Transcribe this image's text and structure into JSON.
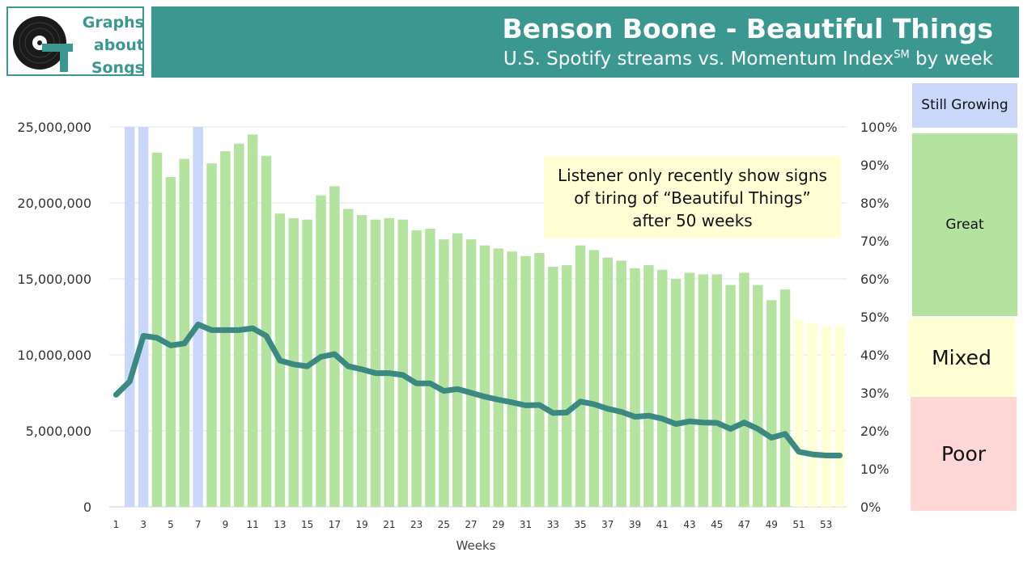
{
  "logo": {
    "line1": "Graphs",
    "line2": "about",
    "line3": "Songs",
    "icon": "vinyl-record-icon"
  },
  "header": {
    "title": "Benson Boone - Beautiful Things",
    "subtitle_main": "U.S. Spotify streams vs. Momentum Index",
    "subtitle_sup": "SM",
    "subtitle_end": " by week"
  },
  "annotation": "Listener only recently show signs of tiring of “Beautiful Things” after 50 weeks",
  "zones": {
    "growing": "Still Growing",
    "great": "Great",
    "mixed": "Mixed",
    "poor": "Poor"
  },
  "colors": {
    "teal": "#3a9890",
    "still_growing": "#c9d8fa",
    "great": "#b4e3a0",
    "mixed": "#ffffd6",
    "poor": "#ffd7d7",
    "line": "#3a8a82"
  },
  "chart_data": {
    "type": "bar",
    "xlabel": "Weeks",
    "x": [
      1,
      2,
      3,
      4,
      5,
      6,
      7,
      8,
      9,
      10,
      11,
      12,
      13,
      14,
      15,
      16,
      17,
      18,
      19,
      20,
      21,
      22,
      23,
      24,
      25,
      26,
      27,
      28,
      29,
      30,
      31,
      32,
      33,
      34,
      35,
      36,
      37,
      38,
      39,
      40,
      41,
      42,
      43,
      44,
      45,
      46,
      47,
      48,
      49,
      50,
      51,
      52,
      53,
      54
    ],
    "x_tick_labels": [
      "1",
      "3",
      "5",
      "7",
      "9",
      "11",
      "13",
      "15",
      "17",
      "19",
      "21",
      "23",
      "25",
      "27",
      "29",
      "31",
      "33",
      "35",
      "37",
      "39",
      "41",
      "43",
      "45",
      "47",
      "49",
      "51",
      "53"
    ],
    "y_left": {
      "ticks": [
        "0",
        "5,000,000",
        "10,000,000",
        "15,000,000",
        "20,000,000",
        "25,000,000"
      ],
      "ylim": [
        0,
        25000000
      ]
    },
    "y_right": {
      "ticks": [
        "0%",
        "10%",
        "20%",
        "30%",
        "40%",
        "50%",
        "60%",
        "70%",
        "80%",
        "90%",
        "100%"
      ],
      "ylim": [
        0,
        100
      ]
    },
    "series": [
      {
        "type": "bar",
        "values": [
          null,
          25000000,
          25000000,
          23300000,
          21700000,
          22900000,
          25000000,
          22600000,
          23400000,
          23900000,
          24500000,
          23100000,
          19300000,
          19000000,
          18900000,
          20500000,
          21100000,
          19600000,
          19200000,
          18900000,
          19000000,
          18900000,
          18200000,
          18300000,
          17600000,
          18000000,
          17600000,
          17200000,
          17000000,
          16800000,
          16500000,
          16700000,
          15800000,
          15900000,
          17200000,
          16900000,
          16400000,
          16200000,
          15700000,
          15900000,
          15600000,
          15000000,
          15400000,
          15300000,
          15300000,
          14600000,
          15400000,
          14600000,
          13600000,
          14300000,
          12300000,
          12100000,
          11900000,
          11900000
        ],
        "zones": [
          null,
          "still_growing",
          "still_growing",
          "great",
          "great",
          "great",
          "still_growing",
          "great",
          "great",
          "great",
          "great",
          "great",
          "great",
          "great",
          "great",
          "great",
          "great",
          "great",
          "great",
          "great",
          "great",
          "great",
          "great",
          "great",
          "great",
          "great",
          "great",
          "great",
          "great",
          "great",
          "great",
          "great",
          "great",
          "great",
          "great",
          "great",
          "great",
          "great",
          "great",
          "great",
          "great",
          "great",
          "great",
          "great",
          "great",
          "great",
          "great",
          "great",
          "great",
          "great",
          "mixed",
          "mixed",
          "mixed",
          "mixed"
        ]
      },
      {
        "type": "line",
        "values": [
          29.5,
          33,
          45,
          44.5,
          42.5,
          43,
          48,
          46.5,
          46.5,
          46.5,
          47,
          45,
          38.5,
          37.5,
          37,
          39.5,
          40.2,
          37,
          36.2,
          35.2,
          35.2,
          34.7,
          32.5,
          32.5,
          30.5,
          31,
          30,
          29,
          28.2,
          27.5,
          26.7,
          26.8,
          24.7,
          24.8,
          27.7,
          27,
          25.8,
          25,
          23.7,
          24,
          23.2,
          21.8,
          22.5,
          22.2,
          22.1,
          20.5,
          22.2,
          20.5,
          18.2,
          19.2,
          14.5,
          13.8,
          13.5,
          13.5
        ]
      }
    ]
  }
}
